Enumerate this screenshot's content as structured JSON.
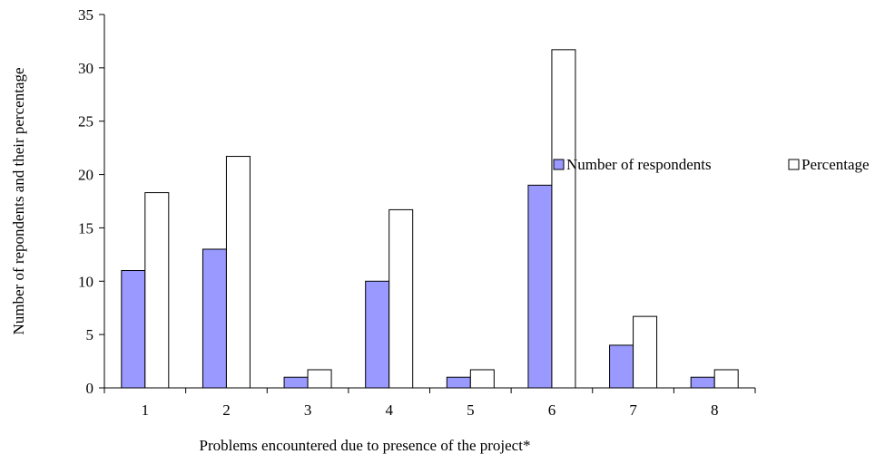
{
  "chart_data": {
    "type": "bar",
    "title": "",
    "xlabel": "Problems encountered due to presence of the project*",
    "ylabel": "Number of repondents and their percentage",
    "categories": [
      "1",
      "2",
      "3",
      "4",
      "5",
      "6",
      "7",
      "8"
    ],
    "series": [
      {
        "name": "Number of respondents",
        "color": "#9999ff",
        "values": [
          11,
          13,
          1,
          10,
          1,
          19,
          4,
          1
        ]
      },
      {
        "name": "Percentage",
        "color": "#ffffff",
        "values": [
          18.3,
          21.7,
          1.7,
          16.7,
          1.7,
          31.7,
          6.7,
          1.7
        ]
      }
    ],
    "ylim": [
      0,
      35
    ],
    "yticks": [
      "0",
      "5",
      "10",
      "15",
      "20",
      "25",
      "30",
      "35"
    ],
    "grid": false,
    "legend_position": "right"
  }
}
